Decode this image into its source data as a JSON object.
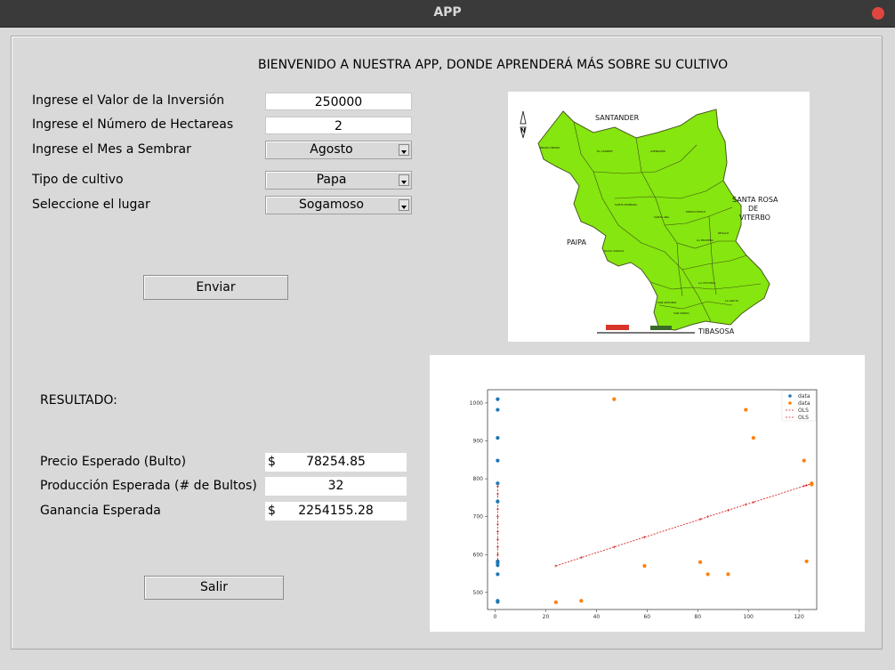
{
  "window": {
    "title": "APP"
  },
  "heading": "BIENVENIDO A NUESTRA APP, DONDE APRENDERÁ MÁS SOBRE SU CULTIVO",
  "form": {
    "inversion_label": "Ingrese el Valor de la Inversión",
    "inversion_value": "250000",
    "hectareas_label": "Ingrese el Número de Hectareas",
    "hectareas_value": "2",
    "mes_label": "Ingrese el Mes a Sembrar",
    "mes_value": "Agosto",
    "cultivo_label": "Tipo de cultivo",
    "cultivo_value": "Papa",
    "lugar_label": "Seleccione el lugar",
    "lugar_value": "Sogamoso",
    "enviar_label": "Enviar"
  },
  "results": {
    "title": "RESULTADO:",
    "precio_label": "Precio Esperado (Bulto)",
    "precio_currency": "$",
    "precio_value": "78254.85",
    "produccion_label": "Producción Esperada (# de Bultos)",
    "produccion_value": "32",
    "ganancia_label": "Ganancia Esperada",
    "ganancia_currency": "$",
    "ganancia_value": "2254155.28",
    "salir_label": "Salir"
  },
  "map": {
    "regions": {
      "santander": "SANTANDER",
      "santa_rosa": [
        "SANTA ROSA",
        "DE",
        "VITERBO"
      ],
      "paipa": "PAIPA",
      "tibasosa": "TIBASOSA"
    },
    "north_label": "N",
    "fill_color": "#86e60f"
  },
  "chart_data": {
    "type": "scatter",
    "xlim": [
      -3,
      127
    ],
    "ylim": [
      455,
      1035
    ],
    "x_ticks": [
      0,
      20,
      40,
      60,
      80,
      100,
      120
    ],
    "y_ticks": [
      500,
      600,
      700,
      800,
      900,
      1000
    ],
    "legend": {
      "position": "top-right",
      "entries": [
        "data",
        "data",
        "OLS",
        "OLS"
      ]
    },
    "series": [
      {
        "name": "data",
        "color": "#1f77b4",
        "marker": "circle",
        "points": [
          [
            1,
            1010
          ],
          [
            1,
            982
          ],
          [
            1,
            908
          ],
          [
            1,
            848
          ],
          [
            1,
            788
          ],
          [
            1,
            740
          ],
          [
            1,
            582
          ],
          [
            1,
            578
          ],
          [
            1,
            572
          ],
          [
            1,
            548
          ],
          [
            1,
            478
          ],
          [
            1,
            475
          ]
        ]
      },
      {
        "name": "data",
        "color": "#ff7f0e",
        "marker": "circle",
        "points": [
          [
            24,
            474
          ],
          [
            34,
            478
          ],
          [
            47,
            1010
          ],
          [
            59,
            570
          ],
          [
            81,
            580
          ],
          [
            84,
            548
          ],
          [
            92,
            548
          ],
          [
            99,
            982
          ],
          [
            102,
            908
          ],
          [
            122,
            848
          ],
          [
            123,
            582
          ],
          [
            125,
            788
          ],
          [
            125,
            785
          ]
        ]
      },
      {
        "name": "OLS",
        "color": "#d62728",
        "style": "dashed-plus",
        "points": [
          [
            1,
            780
          ],
          [
            1,
            760
          ],
          [
            1,
            740
          ],
          [
            1,
            720
          ],
          [
            1,
            700
          ],
          [
            1,
            680
          ],
          [
            1,
            660
          ],
          [
            1,
            640
          ],
          [
            1,
            620
          ],
          [
            1,
            600
          ],
          [
            1,
            585
          ],
          [
            1,
            570
          ]
        ]
      },
      {
        "name": "OLS",
        "color": "#d62728",
        "style": "dashed-plus",
        "points": [
          [
            24,
            570
          ],
          [
            34,
            592
          ],
          [
            47,
            620
          ],
          [
            59,
            646
          ],
          [
            81,
            693
          ],
          [
            84,
            700
          ],
          [
            92,
            717
          ],
          [
            99,
            732
          ],
          [
            102,
            738
          ],
          [
            122,
            781
          ],
          [
            123,
            783
          ],
          [
            125,
            787
          ]
        ]
      }
    ]
  }
}
